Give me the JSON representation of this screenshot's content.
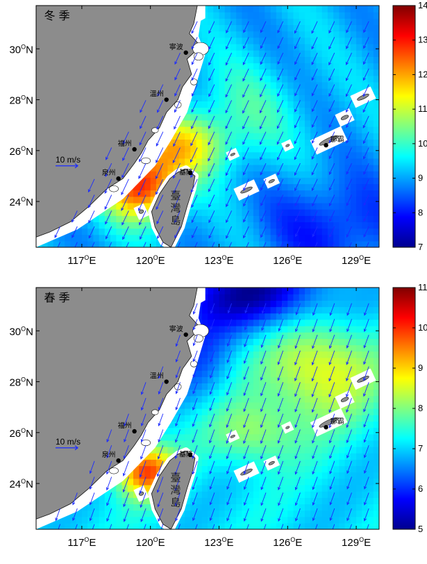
{
  "axis": {
    "x_ticks": [
      {
        "num": "117",
        "unit": "E"
      },
      {
        "num": "120",
        "unit": "E"
      },
      {
        "num": "123",
        "unit": "E"
      },
      {
        "num": "126",
        "unit": "E"
      },
      {
        "num": "129",
        "unit": "E"
      }
    ],
    "y_ticks": [
      {
        "num": "30",
        "unit": "N"
      },
      {
        "num": "28",
        "unit": "N"
      },
      {
        "num": "26",
        "unit": "N"
      },
      {
        "num": "24",
        "unit": "N"
      }
    ],
    "degree_symbol": "O",
    "x_range": [
      115.0,
      130.0
    ],
    "y_range": [
      22.2,
      31.7
    ]
  },
  "places": {
    "ningbo": "寧波",
    "wenzhou": "溫州",
    "fuzhou": "福州",
    "quanzhou": "泉州",
    "keelung": "基隆",
    "naha": "那霸",
    "taiwan_chars": [
      "臺",
      "灣",
      "島"
    ]
  },
  "scale_arrow_label": "10 m/s",
  "colors": {
    "land": "#8c8c8c",
    "no_data": "#ffffff",
    "vector": "#1a2aff",
    "colormap": [
      "#00008f",
      "#0000ff",
      "#0080ff",
      "#00ffff",
      "#80ff80",
      "#ffff00",
      "#ff8000",
      "#ff0000",
      "#800000"
    ]
  },
  "panels": [
    {
      "id": "winter",
      "season": "冬 季",
      "colorbar": {
        "min": 7,
        "max": 14,
        "ticks": [
          "14",
          "13",
          "12",
          "11",
          "10",
          "9",
          "8",
          "7"
        ]
      },
      "wind_direction_deg": 205,
      "speed_field_hotspot": "Taiwan Strait"
    },
    {
      "id": "spring",
      "season": "春 季",
      "colorbar": {
        "min": 5,
        "max": 11,
        "ticks": [
          "11",
          "10",
          "9",
          "8",
          "7",
          "6",
          "5"
        ]
      },
      "wind_direction_deg": 200,
      "speed_field_hotspot": "Taiwan Strait"
    }
  ]
}
